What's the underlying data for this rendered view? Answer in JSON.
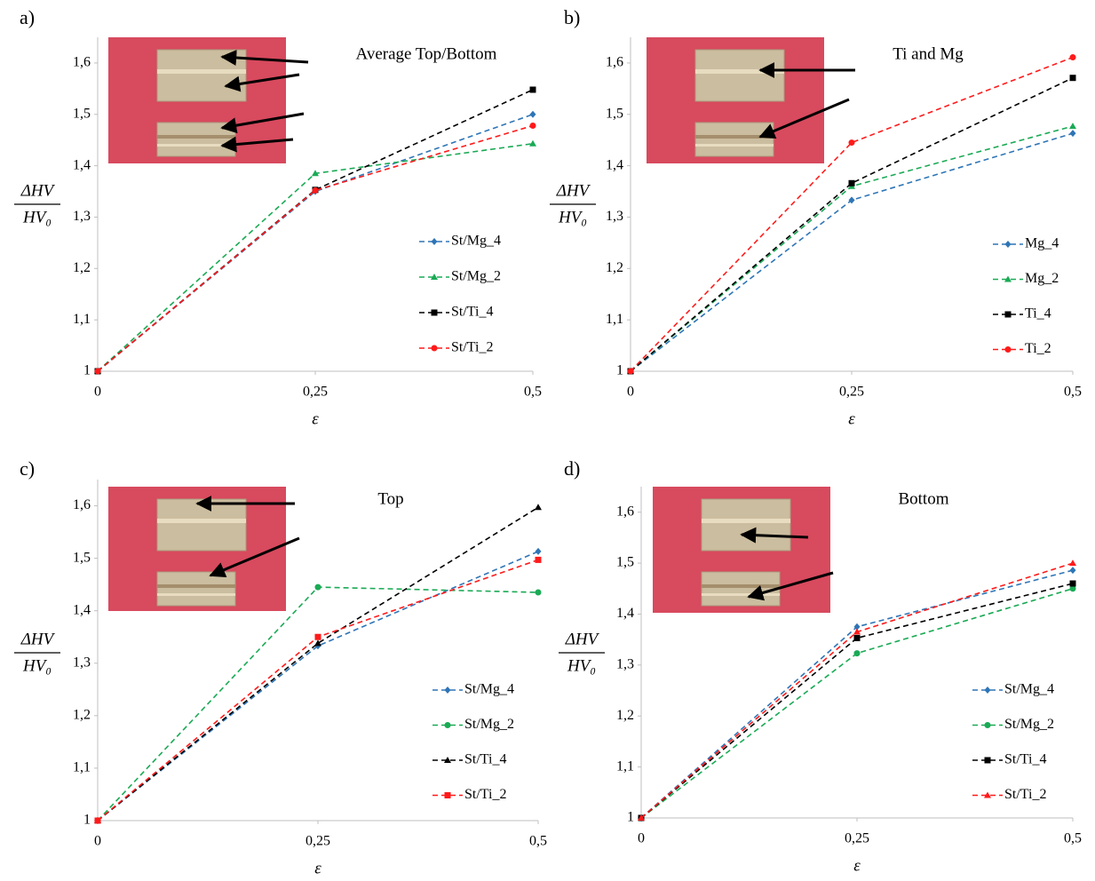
{
  "chart_data": [
    {
      "type": "line",
      "panel_label": "a)",
      "annotation": "Average Top/Bottom",
      "xlabel": "ε",
      "ylabel": [
        "ΔHV",
        "HV₀"
      ],
      "x": [
        0,
        0.25,
        0.5
      ],
      "xlim": [
        0,
        0.5
      ],
      "ylim": [
        1,
        1.65
      ],
      "xticks": [
        0,
        {
          "value": 0.25,
          "label": "0,25"
        },
        {
          "value": 0.5,
          "label": "0,5"
        }
      ],
      "yticks": [
        1,
        {
          "value": 1.1,
          "label": "1,1"
        },
        {
          "value": 1.2,
          "label": "1,2"
        },
        {
          "value": 1.3,
          "label": "1,3"
        },
        {
          "value": 1.4,
          "label": "1,4"
        },
        {
          "value": 1.5,
          "label": "1,5"
        },
        {
          "value": 1.6,
          "label": "1,6"
        }
      ],
      "legend": "right",
      "line_style": "dashed",
      "series": [
        {
          "name": "St/Mg_4",
          "color": "#2e75b6",
          "marker": "diamond",
          "values": [
            1,
            1.35,
            1.5
          ]
        },
        {
          "name": "St/Mg_2",
          "color": "#1aaa55",
          "marker": "triangle",
          "values": [
            1,
            1.385,
            1.443
          ]
        },
        {
          "name": "St/Ti_4",
          "color": "#000000",
          "marker": "square",
          "values": [
            1,
            1.353,
            1.548
          ]
        },
        {
          "name": "St/Ti_2",
          "color": "#ff1a1a",
          "marker": "circle",
          "values": [
            1,
            1.352,
            1.478
          ]
        }
      ]
    },
    {
      "type": "line",
      "panel_label": "b)",
      "annotation": "Ti and Mg",
      "xlabel": "ε",
      "ylabel": [
        "ΔHV",
        "HV₀"
      ],
      "x": [
        0,
        0.25,
        0.5
      ],
      "xlim": [
        0,
        0.5
      ],
      "ylim": [
        1,
        1.65
      ],
      "xticks": [
        0,
        {
          "value": 0.25,
          "label": "0,25"
        },
        {
          "value": 0.5,
          "label": "0,5"
        }
      ],
      "yticks": [
        1,
        {
          "value": 1.1,
          "label": "1,1"
        },
        {
          "value": 1.2,
          "label": "1,2"
        },
        {
          "value": 1.3,
          "label": "1,3"
        },
        {
          "value": 1.4,
          "label": "1,4"
        },
        {
          "value": 1.5,
          "label": "1,5"
        },
        {
          "value": 1.6,
          "label": "1,6"
        }
      ],
      "legend": "right",
      "line_style": "dashed",
      "series": [
        {
          "name": "Mg_4",
          "color": "#2e75b6",
          "marker": "diamond",
          "values": [
            1,
            1.333,
            1.463
          ]
        },
        {
          "name": "Mg_2",
          "color": "#1aaa55",
          "marker": "triangle",
          "values": [
            1,
            1.36,
            1.477
          ]
        },
        {
          "name": "Ti_4",
          "color": "#000000",
          "marker": "square",
          "values": [
            1,
            1.366,
            1.571
          ]
        },
        {
          "name": "Ti_2",
          "color": "#ff1a1a",
          "marker": "circle",
          "values": [
            1,
            1.445,
            1.611
          ]
        }
      ]
    },
    {
      "type": "line",
      "panel_label": "c)",
      "annotation": "Top",
      "xlabel": "ε",
      "ylabel": [
        "ΔHV",
        "HV₀"
      ],
      "x": [
        0,
        0.25,
        0.5
      ],
      "xlim": [
        0,
        0.5
      ],
      "ylim": [
        1,
        1.65
      ],
      "xticks": [
        0,
        {
          "value": 0.25,
          "label": "0,25"
        },
        {
          "value": 0.5,
          "label": "0,5"
        }
      ],
      "yticks": [
        1,
        {
          "value": 1.1,
          "label": "1,1"
        },
        {
          "value": 1.2,
          "label": "1,2"
        },
        {
          "value": 1.3,
          "label": "1,3"
        },
        {
          "value": 1.4,
          "label": "1,4"
        },
        {
          "value": 1.5,
          "label": "1,5"
        },
        {
          "value": 1.6,
          "label": "1,6"
        }
      ],
      "legend": "right",
      "line_style": "dashed",
      "series": [
        {
          "name": "St/Mg_4",
          "color": "#2e75b6",
          "marker": "diamond",
          "values": [
            1,
            1.333,
            1.513
          ]
        },
        {
          "name": "St/Mg_2",
          "color": "#1aaa55",
          "marker": "circle",
          "values": [
            1,
            1.445,
            1.435
          ]
        },
        {
          "name": "St/Ti_4",
          "color": "#000000",
          "marker": "triangle",
          "values": [
            1,
            1.338,
            1.597
          ]
        },
        {
          "name": "St/Ti_2",
          "color": "#ff1a1a",
          "marker": "square",
          "values": [
            1,
            1.35,
            1.497
          ]
        }
      ]
    },
    {
      "type": "line",
      "panel_label": "d)",
      "annotation": "Bottom",
      "xlabel": "ε",
      "ylabel": [
        "ΔHV",
        "HV₀"
      ],
      "x": [
        0,
        0.25,
        0.5
      ],
      "xlim": [
        0,
        0.5
      ],
      "ylim": [
        1,
        1.65
      ],
      "xticks": [
        0,
        {
          "value": 0.25,
          "label": "0,25"
        },
        {
          "value": 0.5,
          "label": "0,5"
        }
      ],
      "yticks": [
        1,
        {
          "value": 1.1,
          "label": "1,1"
        },
        {
          "value": 1.2,
          "label": "1,2"
        },
        {
          "value": 1.3,
          "label": "1,3"
        },
        {
          "value": 1.4,
          "label": "1,4"
        },
        {
          "value": 1.5,
          "label": "1,5"
        },
        {
          "value": 1.6,
          "label": "1,6"
        }
      ],
      "legend": "right",
      "line_style": "dashed",
      "series": [
        {
          "name": "St/Mg_4",
          "color": "#2e75b6",
          "marker": "diamond",
          "values": [
            1,
            1.375,
            1.486
          ]
        },
        {
          "name": "St/Mg_2",
          "color": "#1aaa55",
          "marker": "circle",
          "values": [
            1,
            1.323,
            1.45
          ]
        },
        {
          "name": "St/Ti_4",
          "color": "#000000",
          "marker": "square",
          "values": [
            1,
            1.353,
            1.46
          ]
        },
        {
          "name": "St/Ti_2",
          "color": "#ff1a1a",
          "marker": "triangle",
          "values": [
            1,
            1.365,
            1.5
          ]
        }
      ]
    }
  ]
}
